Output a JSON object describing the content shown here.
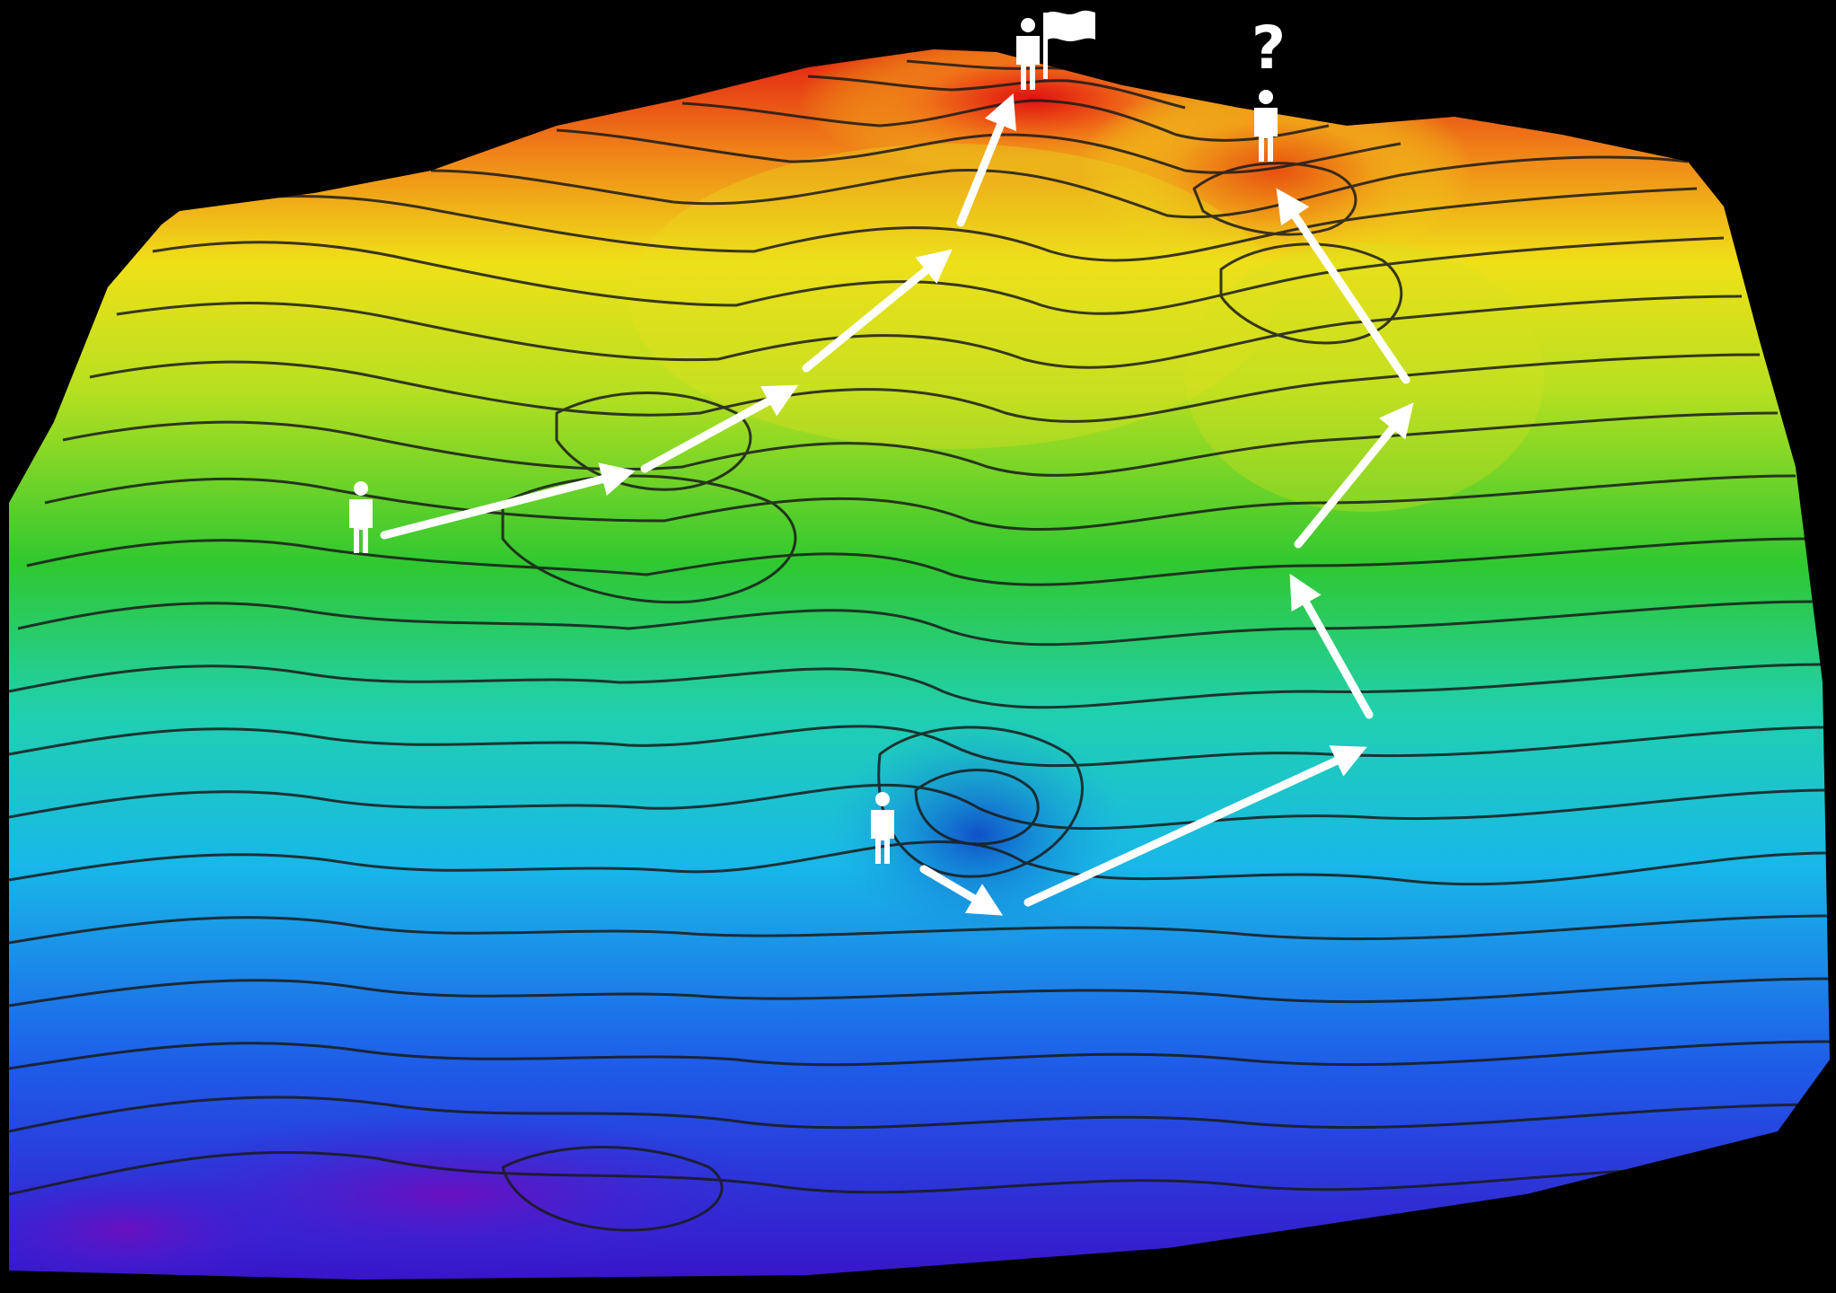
{
  "figure": {
    "surface": "3d-terrain-heightmap-with-contour-lines",
    "colormap": [
      "#3a10c8",
      "#1e5ce8",
      "#18b8e8",
      "#20d0b0",
      "#30c830",
      "#b8e020",
      "#f0e018",
      "#f08018",
      "#e01010"
    ],
    "paths": [
      {
        "name": "upper-climber-path",
        "outcome": "global-maximum"
      },
      {
        "name": "lower-climber-path",
        "outcome": "local-maximum"
      }
    ],
    "annotations": {
      "question_mark": "?"
    },
    "icons": [
      "person-icon",
      "person-with-flag-icon",
      "arrow-icon"
    ]
  }
}
